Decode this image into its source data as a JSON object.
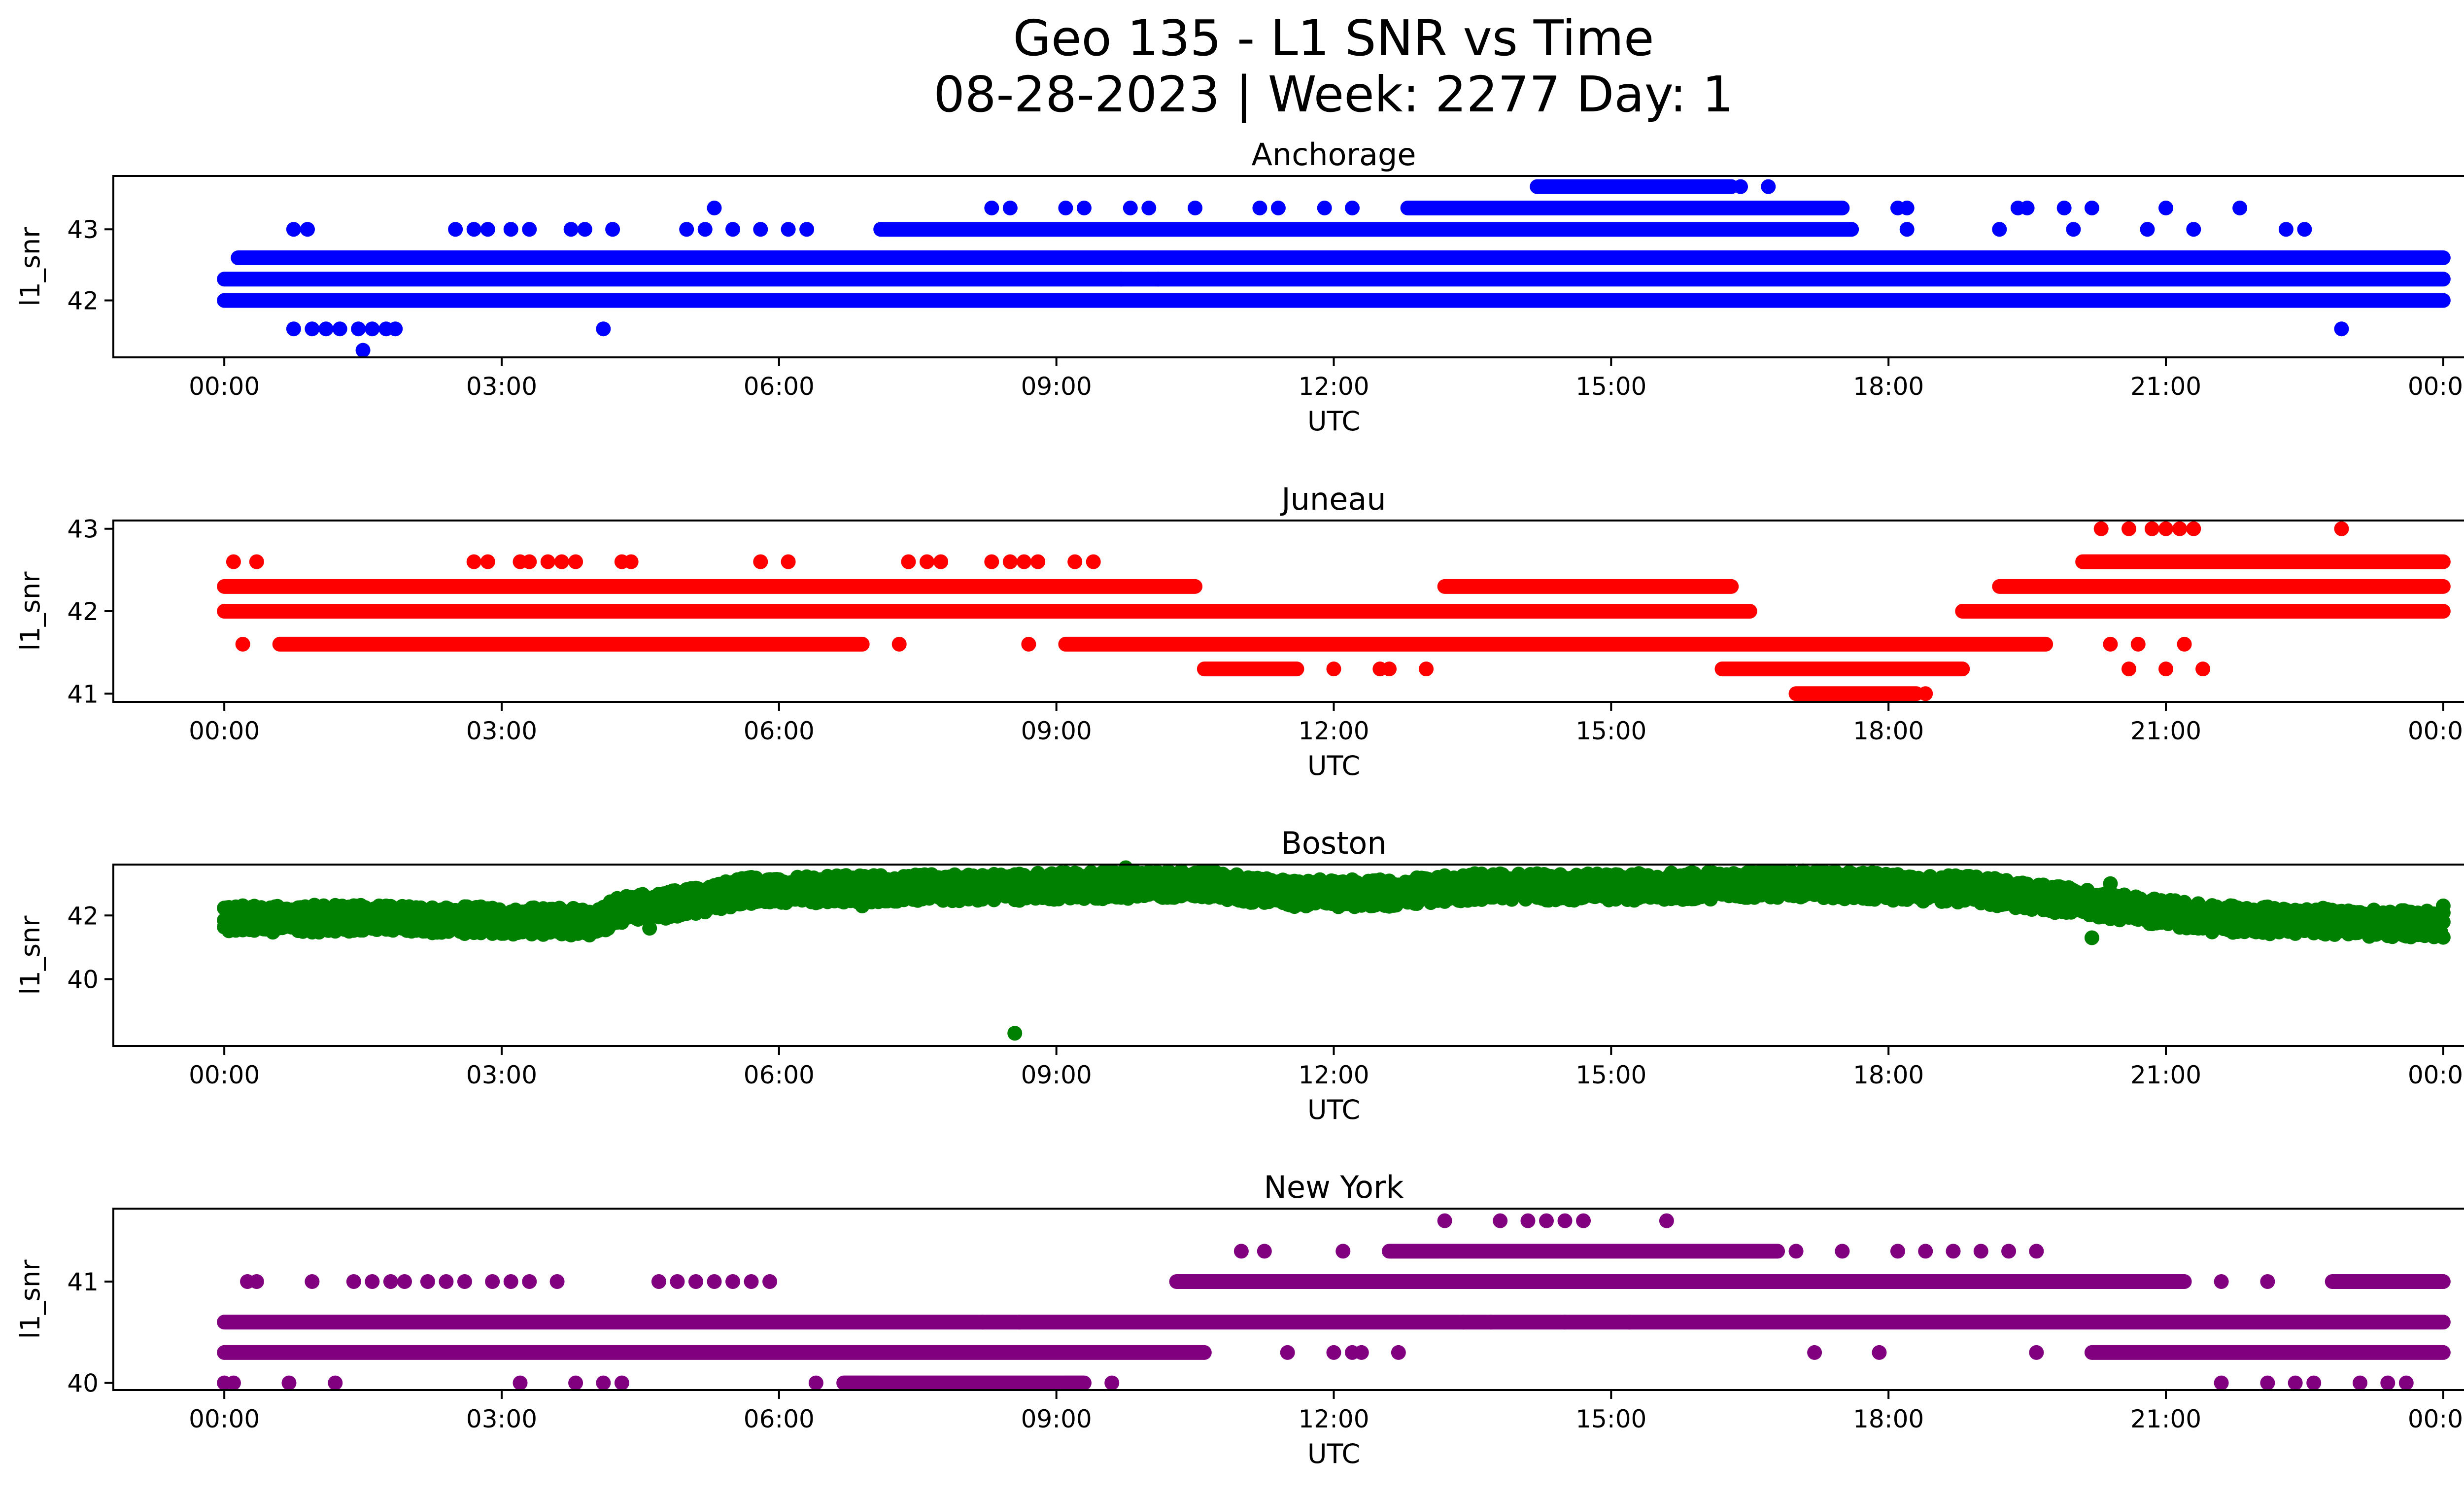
{
  "title": "Geo 135 - L1 SNR vs Time",
  "subtitle": "08-28-2023 | Week: 2277 Day: 1",
  "chart_data": [
    {
      "type": "scatter",
      "title": "Anchorage",
      "xlabel": "UTC",
      "ylabel": "l1_snr",
      "color": "#0000ff",
      "xlim": [
        -1.2,
        25.2
      ],
      "ylim": [
        41.2,
        43.75
      ],
      "yticks": [
        42,
        43
      ],
      "xtick_hours": [
        0,
        3,
        6,
        9,
        12,
        15,
        18,
        21,
        24
      ],
      "xtick_labels": [
        "00:00",
        "03:00",
        "06:00",
        "09:00",
        "12:00",
        "15:00",
        "18:00",
        "21:00",
        "00:00"
      ],
      "bands": [
        {
          "y": 42.0,
          "from": 0.0,
          "to": 24.0
        },
        {
          "y": 42.3,
          "from": 0.0,
          "to": 24.0
        },
        {
          "y": 42.6,
          "from": 0.15,
          "to": 24.0
        },
        {
          "y": 43.0,
          "from": 7.1,
          "to": 17.6
        },
        {
          "y": 43.3,
          "from": 12.8,
          "to": 17.5
        },
        {
          "y": 43.6,
          "from": 14.2,
          "to": 16.3
        }
      ],
      "points": [
        {
          "x": 0.75,
          "y": 43.0
        },
        {
          "x": 0.9,
          "y": 43.0
        },
        {
          "x": 2.5,
          "y": 43.0
        },
        {
          "x": 2.7,
          "y": 43.0
        },
        {
          "x": 2.85,
          "y": 43.0
        },
        {
          "x": 3.1,
          "y": 43.0
        },
        {
          "x": 3.3,
          "y": 43.0
        },
        {
          "x": 3.75,
          "y": 43.0
        },
        {
          "x": 3.9,
          "y": 43.0
        },
        {
          "x": 4.2,
          "y": 43.0
        },
        {
          "x": 5.0,
          "y": 43.0
        },
        {
          "x": 5.2,
          "y": 43.0
        },
        {
          "x": 5.5,
          "y": 43.0
        },
        {
          "x": 5.8,
          "y": 43.0
        },
        {
          "x": 6.1,
          "y": 43.0
        },
        {
          "x": 6.3,
          "y": 43.0
        },
        {
          "x": 5.3,
          "y": 43.3
        },
        {
          "x": 8.3,
          "y": 43.3
        },
        {
          "x": 8.5,
          "y": 43.3
        },
        {
          "x": 9.1,
          "y": 43.3
        },
        {
          "x": 9.3,
          "y": 43.3
        },
        {
          "x": 9.8,
          "y": 43.3
        },
        {
          "x": 10.0,
          "y": 43.3
        },
        {
          "x": 10.5,
          "y": 43.3
        },
        {
          "x": 11.2,
          "y": 43.3
        },
        {
          "x": 11.4,
          "y": 43.3
        },
        {
          "x": 11.9,
          "y": 43.3
        },
        {
          "x": 12.2,
          "y": 43.3
        },
        {
          "x": 18.1,
          "y": 43.3
        },
        {
          "x": 18.2,
          "y": 43.3
        },
        {
          "x": 19.4,
          "y": 43.3
        },
        {
          "x": 19.5,
          "y": 43.3
        },
        {
          "x": 19.9,
          "y": 43.3
        },
        {
          "x": 20.2,
          "y": 43.3
        },
        {
          "x": 21.0,
          "y": 43.3
        },
        {
          "x": 21.8,
          "y": 43.3
        },
        {
          "x": 18.2,
          "y": 43.0
        },
        {
          "x": 19.2,
          "y": 43.0
        },
        {
          "x": 20.0,
          "y": 43.0
        },
        {
          "x": 20.8,
          "y": 43.0
        },
        {
          "x": 21.3,
          "y": 43.0
        },
        {
          "x": 22.3,
          "y": 43.0
        },
        {
          "x": 22.5,
          "y": 43.0
        },
        {
          "x": 16.7,
          "y": 43.6
        },
        {
          "x": 16.4,
          "y": 43.6
        },
        {
          "x": 0.75,
          "y": 41.6
        },
        {
          "x": 0.95,
          "y": 41.6
        },
        {
          "x": 1.1,
          "y": 41.6
        },
        {
          "x": 1.25,
          "y": 41.6
        },
        {
          "x": 1.45,
          "y": 41.6
        },
        {
          "x": 1.6,
          "y": 41.6
        },
        {
          "x": 1.75,
          "y": 41.6
        },
        {
          "x": 1.85,
          "y": 41.6
        },
        {
          "x": 1.5,
          "y": 41.3
        },
        {
          "x": 4.1,
          "y": 41.6
        },
        {
          "x": 22.9,
          "y": 41.6
        },
        {
          "x": 8.5,
          "y": 42.0
        },
        {
          "x": 18.9,
          "y": 42.0
        },
        {
          "x": 9.7,
          "y": 42.3
        },
        {
          "x": 10.1,
          "y": 42.3
        },
        {
          "x": 13.3,
          "y": 42.6
        },
        {
          "x": 13.7,
          "y": 42.6
        },
        {
          "x": 14.0,
          "y": 42.6
        },
        {
          "x": 14.1,
          "y": 42.6
        },
        {
          "x": 17.2,
          "y": 42.6
        }
      ]
    },
    {
      "type": "scatter",
      "title": "Juneau",
      "xlabel": "UTC",
      "ylabel": "l1_snr",
      "color": "#ff0000",
      "xlim": [
        -1.2,
        25.2
      ],
      "ylim": [
        40.9,
        43.1
      ],
      "yticks": [
        41,
        42,
        43
      ],
      "xtick_hours": [
        0,
        3,
        6,
        9,
        12,
        15,
        18,
        21,
        24
      ],
      "xtick_labels": [
        "00:00",
        "03:00",
        "06:00",
        "09:00",
        "12:00",
        "15:00",
        "18:00",
        "21:00",
        "00:00"
      ],
      "bands": [
        {
          "y": 42.3,
          "from": 0.0,
          "to": 10.5
        },
        {
          "y": 42.3,
          "from": 13.2,
          "to": 16.3
        },
        {
          "y": 42.3,
          "from": 19.2,
          "to": 24.0
        },
        {
          "y": 42.0,
          "from": 0.0,
          "to": 11.0
        },
        {
          "y": 42.0,
          "from": 11.0,
          "to": 16.5
        },
        {
          "y": 42.0,
          "from": 18.8,
          "to": 24.0
        },
        {
          "y": 41.6,
          "from": 0.6,
          "to": 6.9
        },
        {
          "y": 41.6,
          "from": 9.1,
          "to": 19.7
        },
        {
          "y": 41.3,
          "from": 10.6,
          "to": 11.6
        },
        {
          "y": 41.3,
          "from": 16.2,
          "to": 18.8
        },
        {
          "y": 42.6,
          "from": 20.1,
          "to": 24.0
        },
        {
          "y": 41.0,
          "from": 17.0,
          "to": 18.3
        }
      ],
      "points": [
        {
          "x": 0.1,
          "y": 42.6
        },
        {
          "x": 0.35,
          "y": 42.6
        },
        {
          "x": 2.7,
          "y": 42.6
        },
        {
          "x": 2.85,
          "y": 42.6
        },
        {
          "x": 3.2,
          "y": 42.6
        },
        {
          "x": 3.3,
          "y": 42.6
        },
        {
          "x": 3.5,
          "y": 42.6
        },
        {
          "x": 3.65,
          "y": 42.6
        },
        {
          "x": 3.8,
          "y": 42.6
        },
        {
          "x": 4.3,
          "y": 42.6
        },
        {
          "x": 4.4,
          "y": 42.6
        },
        {
          "x": 5.8,
          "y": 42.6
        },
        {
          "x": 6.1,
          "y": 42.6
        },
        {
          "x": 7.4,
          "y": 42.6
        },
        {
          "x": 7.6,
          "y": 42.6
        },
        {
          "x": 7.75,
          "y": 42.6
        },
        {
          "x": 8.3,
          "y": 42.6
        },
        {
          "x": 8.5,
          "y": 42.6
        },
        {
          "x": 8.65,
          "y": 42.6
        },
        {
          "x": 8.8,
          "y": 42.6
        },
        {
          "x": 9.2,
          "y": 42.6
        },
        {
          "x": 9.4,
          "y": 42.6
        },
        {
          "x": 0.2,
          "y": 41.6
        },
        {
          "x": 7.3,
          "y": 41.6
        },
        {
          "x": 8.7,
          "y": 41.6
        },
        {
          "x": 20.3,
          "y": 43.0
        },
        {
          "x": 20.6,
          "y": 43.0
        },
        {
          "x": 20.85,
          "y": 43.0
        },
        {
          "x": 21.0,
          "y": 43.0
        },
        {
          "x": 21.15,
          "y": 43.0
        },
        {
          "x": 21.3,
          "y": 43.0
        },
        {
          "x": 22.9,
          "y": 43.0
        },
        {
          "x": 20.6,
          "y": 41.3
        },
        {
          "x": 21.0,
          "y": 41.3
        },
        {
          "x": 21.4,
          "y": 41.3
        },
        {
          "x": 12.0,
          "y": 41.3
        },
        {
          "x": 12.5,
          "y": 41.3
        },
        {
          "x": 12.6,
          "y": 41.3
        },
        {
          "x": 13.0,
          "y": 41.3
        },
        {
          "x": 18.4,
          "y": 41.0
        },
        {
          "x": 20.4,
          "y": 41.6
        },
        {
          "x": 20.7,
          "y": 41.6
        },
        {
          "x": 21.2,
          "y": 41.6
        }
      ]
    },
    {
      "type": "scatter",
      "title": "Boston",
      "xlabel": "UTC",
      "ylabel": "l1_snr",
      "color": "#008000",
      "xlim": [
        -1.2,
        25.2
      ],
      "ylim": [
        37.9,
        43.6
      ],
      "yticks": [
        40,
        42
      ],
      "xtick_hours": [
        0,
        3,
        6,
        9,
        12,
        15,
        18,
        21,
        24
      ],
      "xtick_labels": [
        "00:00",
        "03:00",
        "06:00",
        "09:00",
        "12:00",
        "15:00",
        "18:00",
        "21:00",
        "00:00"
      ],
      "trend": [
        {
          "x": 0.0,
          "y": 41.9
        },
        {
          "x": 1.5,
          "y": 41.9
        },
        {
          "x": 4.0,
          "y": 41.8
        },
        {
          "x": 4.3,
          "y": 42.2
        },
        {
          "x": 5.0,
          "y": 42.4
        },
        {
          "x": 5.7,
          "y": 42.8
        },
        {
          "x": 8.6,
          "y": 42.9
        },
        {
          "x": 10.5,
          "y": 43.0
        },
        {
          "x": 11.5,
          "y": 42.7
        },
        {
          "x": 12.6,
          "y": 42.7
        },
        {
          "x": 13.5,
          "y": 42.9
        },
        {
          "x": 15.5,
          "y": 42.9
        },
        {
          "x": 17.0,
          "y": 43.0
        },
        {
          "x": 19.0,
          "y": 42.8
        },
        {
          "x": 19.5,
          "y": 42.6
        },
        {
          "x": 20.4,
          "y": 42.3
        },
        {
          "x": 21.5,
          "y": 41.9
        },
        {
          "x": 24.0,
          "y": 41.7
        }
      ],
      "points": [
        {
          "x": 8.55,
          "y": 38.3
        },
        {
          "x": 9.75,
          "y": 43.5
        },
        {
          "x": 20.4,
          "y": 43.0
        },
        {
          "x": 20.2,
          "y": 41.3
        },
        {
          "x": 4.6,
          "y": 41.6
        },
        {
          "x": 0.2,
          "y": 42.3
        },
        {
          "x": 24.0,
          "y": 42.3
        },
        {
          "x": 8.6,
          "y": 43.3
        },
        {
          "x": 10.8,
          "y": 43.3
        },
        {
          "x": 14.0,
          "y": 43.3
        },
        {
          "x": 16.6,
          "y": 43.3
        },
        {
          "x": 12.4,
          "y": 42.3
        },
        {
          "x": 6.9,
          "y": 42.3
        }
      ]
    },
    {
      "type": "scatter",
      "title": "New York",
      "xlabel": "UTC",
      "ylabel": "l1_snr",
      "color": "#800080",
      "xlim": [
        -1.2,
        25.2
      ],
      "ylim": [
        39.93,
        41.72
      ],
      "yticks": [
        40,
        41
      ],
      "xtick_hours": [
        0,
        3,
        6,
        9,
        12,
        15,
        18,
        21,
        24
      ],
      "xtick_labels": [
        "00:00",
        "03:00",
        "06:00",
        "09:00",
        "12:00",
        "15:00",
        "18:00",
        "21:00",
        "00:00"
      ],
      "bands": [
        {
          "y": 40.6,
          "from": 0.0,
          "to": 24.0
        },
        {
          "y": 40.3,
          "from": 0.0,
          "to": 10.6
        },
        {
          "y": 40.3,
          "from": 20.2,
          "to": 24.0
        },
        {
          "y": 41.0,
          "from": 10.3,
          "to": 21.2
        },
        {
          "y": 41.0,
          "from": 22.8,
          "to": 24.0
        },
        {
          "y": 41.3,
          "from": 12.6,
          "to": 16.8
        },
        {
          "y": 40.0,
          "from": 6.7,
          "to": 9.3
        }
      ],
      "points": [
        {
          "x": 0.0,
          "y": 40.0
        },
        {
          "x": 0.1,
          "y": 40.0
        },
        {
          "x": 0.7,
          "y": 40.0
        },
        {
          "x": 1.2,
          "y": 40.0
        },
        {
          "x": 3.2,
          "y": 40.0
        },
        {
          "x": 3.8,
          "y": 40.0
        },
        {
          "x": 4.1,
          "y": 40.0
        },
        {
          "x": 4.3,
          "y": 40.0
        },
        {
          "x": 6.4,
          "y": 40.0
        },
        {
          "x": 9.6,
          "y": 40.0
        },
        {
          "x": 21.6,
          "y": 40.0
        },
        {
          "x": 22.1,
          "y": 40.0
        },
        {
          "x": 22.4,
          "y": 40.0
        },
        {
          "x": 22.6,
          "y": 40.0
        },
        {
          "x": 23.1,
          "y": 40.0
        },
        {
          "x": 23.4,
          "y": 40.0
        },
        {
          "x": 23.6,
          "y": 40.0
        },
        {
          "x": 0.25,
          "y": 41.0
        },
        {
          "x": 0.35,
          "y": 41.0
        },
        {
          "x": 0.95,
          "y": 41.0
        },
        {
          "x": 1.4,
          "y": 41.0
        },
        {
          "x": 1.6,
          "y": 41.0
        },
        {
          "x": 1.8,
          "y": 41.0
        },
        {
          "x": 1.95,
          "y": 41.0
        },
        {
          "x": 2.2,
          "y": 41.0
        },
        {
          "x": 2.4,
          "y": 41.0
        },
        {
          "x": 2.6,
          "y": 41.0
        },
        {
          "x": 2.9,
          "y": 41.0
        },
        {
          "x": 3.1,
          "y": 41.0
        },
        {
          "x": 3.3,
          "y": 41.0
        },
        {
          "x": 3.6,
          "y": 41.0
        },
        {
          "x": 4.7,
          "y": 41.0
        },
        {
          "x": 4.9,
          "y": 41.0
        },
        {
          "x": 5.1,
          "y": 41.0
        },
        {
          "x": 5.3,
          "y": 41.0
        },
        {
          "x": 5.5,
          "y": 41.0
        },
        {
          "x": 5.7,
          "y": 41.0
        },
        {
          "x": 5.9,
          "y": 41.0
        },
        {
          "x": 11.0,
          "y": 41.3
        },
        {
          "x": 11.25,
          "y": 41.3
        },
        {
          "x": 12.1,
          "y": 41.3
        },
        {
          "x": 17.0,
          "y": 41.3
        },
        {
          "x": 17.5,
          "y": 41.3
        },
        {
          "x": 18.1,
          "y": 41.3
        },
        {
          "x": 18.4,
          "y": 41.3
        },
        {
          "x": 18.7,
          "y": 41.3
        },
        {
          "x": 19.0,
          "y": 41.3
        },
        {
          "x": 19.3,
          "y": 41.3
        },
        {
          "x": 19.6,
          "y": 41.3
        },
        {
          "x": 13.2,
          "y": 41.6
        },
        {
          "x": 13.8,
          "y": 41.6
        },
        {
          "x": 14.1,
          "y": 41.6
        },
        {
          "x": 14.3,
          "y": 41.6
        },
        {
          "x": 14.5,
          "y": 41.6
        },
        {
          "x": 14.7,
          "y": 41.6
        },
        {
          "x": 15.6,
          "y": 41.6
        },
        {
          "x": 21.6,
          "y": 41.0
        },
        {
          "x": 22.1,
          "y": 41.0
        },
        {
          "x": 11.5,
          "y": 40.3
        },
        {
          "x": 12.0,
          "y": 40.3
        },
        {
          "x": 12.3,
          "y": 40.3
        },
        {
          "x": 12.7,
          "y": 40.3
        },
        {
          "x": 17.2,
          "y": 40.3
        },
        {
          "x": 17.9,
          "y": 40.3
        },
        {
          "x": 19.6,
          "y": 40.3
        },
        {
          "x": 12.2,
          "y": 40.3
        },
        {
          "x": 8.2,
          "y": 40.6
        },
        {
          "x": 8.6,
          "y": 40.6
        },
        {
          "x": 13.4,
          "y": 40.6
        },
        {
          "x": 13.7,
          "y": 40.6
        },
        {
          "x": 14.5,
          "y": 40.6
        },
        {
          "x": 15.2,
          "y": 40.6
        }
      ]
    }
  ]
}
